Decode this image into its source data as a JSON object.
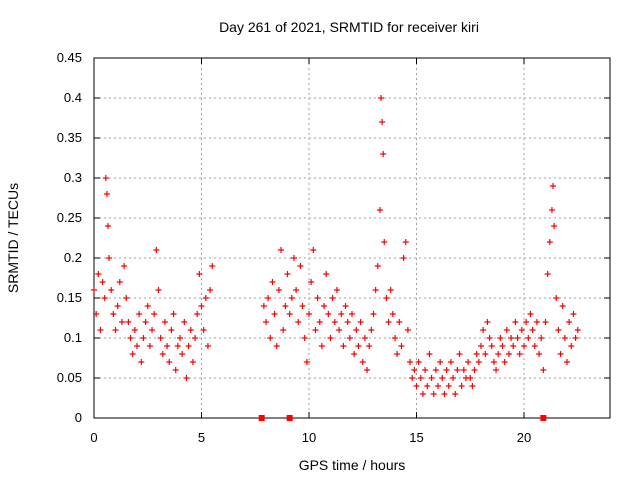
{
  "chart_data": {
    "type": "scatter",
    "title": "Day 261 of 2021, SRMTID for receiver kiri",
    "xlabel": "GPS time / hours",
    "ylabel": "SRMTID / TECUs",
    "xlim": [
      0,
      24
    ],
    "ylim": [
      0,
      0.45
    ],
    "xticks": [
      0,
      5,
      10,
      15,
      20
    ],
    "yticks": [
      0,
      0.05,
      0.1,
      0.15,
      0.2,
      0.25,
      0.3,
      0.35,
      0.4,
      0.45
    ],
    "xtick_labels": [
      "0",
      "5",
      "10",
      "15",
      "20"
    ],
    "ytick_labels": [
      "0",
      "0.05",
      "0.1",
      "0.15",
      "0.2",
      "0.25",
      "0.3",
      "0.35",
      "0.4",
      "0.45"
    ],
    "grid": true,
    "marker": "plus",
    "color": "#ff0000",
    "gap_marker_x": [
      7.8,
      9.1,
      20.9
    ],
    "series": [
      {
        "name": "SRMTID",
        "points": [
          [
            0.0,
            0.16
          ],
          [
            0.1,
            0.13
          ],
          [
            0.2,
            0.18
          ],
          [
            0.3,
            0.11
          ],
          [
            0.4,
            0.17
          ],
          [
            0.5,
            0.15
          ],
          [
            0.55,
            0.3
          ],
          [
            0.6,
            0.28
          ],
          [
            0.65,
            0.24
          ],
          [
            0.7,
            0.2
          ],
          [
            0.8,
            0.16
          ],
          [
            0.9,
            0.13
          ],
          [
            1.0,
            0.11
          ],
          [
            1.1,
            0.14
          ],
          [
            1.2,
            0.17
          ],
          [
            1.3,
            0.12
          ],
          [
            1.4,
            0.19
          ],
          [
            1.5,
            0.15
          ],
          [
            1.6,
            0.12
          ],
          [
            1.7,
            0.1
          ],
          [
            1.8,
            0.08
          ],
          [
            1.9,
            0.11
          ],
          [
            2.0,
            0.09
          ],
          [
            2.1,
            0.13
          ],
          [
            2.2,
            0.07
          ],
          [
            2.3,
            0.1
          ],
          [
            2.4,
            0.12
          ],
          [
            2.5,
            0.14
          ],
          [
            2.6,
            0.09
          ],
          [
            2.7,
            0.11
          ],
          [
            2.8,
            0.13
          ],
          [
            2.9,
            0.21
          ],
          [
            3.0,
            0.16
          ],
          [
            3.1,
            0.1
          ],
          [
            3.2,
            0.08
          ],
          [
            3.3,
            0.12
          ],
          [
            3.4,
            0.09
          ],
          [
            3.5,
            0.07
          ],
          [
            3.6,
            0.11
          ],
          [
            3.7,
            0.13
          ],
          [
            3.8,
            0.06
          ],
          [
            3.9,
            0.09
          ],
          [
            4.0,
            0.1
          ],
          [
            4.1,
            0.08
          ],
          [
            4.2,
            0.12
          ],
          [
            4.3,
            0.05
          ],
          [
            4.4,
            0.09
          ],
          [
            4.5,
            0.11
          ],
          [
            4.6,
            0.07
          ],
          [
            4.7,
            0.1
          ],
          [
            4.8,
            0.13
          ],
          [
            4.9,
            0.18
          ],
          [
            5.0,
            0.14
          ],
          [
            5.1,
            0.11
          ],
          [
            5.2,
            0.15
          ],
          [
            5.3,
            0.09
          ],
          [
            5.4,
            0.16
          ],
          [
            5.5,
            0.19
          ],
          [
            7.9,
            0.14
          ],
          [
            8.0,
            0.12
          ],
          [
            8.1,
            0.15
          ],
          [
            8.2,
            0.1
          ],
          [
            8.3,
            0.17
          ],
          [
            8.4,
            0.13
          ],
          [
            8.5,
            0.09
          ],
          [
            8.6,
            0.16
          ],
          [
            8.7,
            0.21
          ],
          [
            8.8,
            0.11
          ],
          [
            8.9,
            0.14
          ],
          [
            9.0,
            0.18
          ],
          [
            9.1,
            0.13
          ],
          [
            9.2,
            0.15
          ],
          [
            9.3,
            0.2
          ],
          [
            9.4,
            0.16
          ],
          [
            9.5,
            0.12
          ],
          [
            9.6,
            0.19
          ],
          [
            9.7,
            0.14
          ],
          [
            9.8,
            0.1
          ],
          [
            9.9,
            0.07
          ],
          [
            10.0,
            0.13
          ],
          [
            10.1,
            0.17
          ],
          [
            10.2,
            0.21
          ],
          [
            10.3,
            0.11
          ],
          [
            10.4,
            0.15
          ],
          [
            10.5,
            0.12
          ],
          [
            10.6,
            0.09
          ],
          [
            10.7,
            0.14
          ],
          [
            10.8,
            0.18
          ],
          [
            10.9,
            0.13
          ],
          [
            11.0,
            0.1
          ],
          [
            11.1,
            0.15
          ],
          [
            11.2,
            0.12
          ],
          [
            11.3,
            0.16
          ],
          [
            11.4,
            0.11
          ],
          [
            11.5,
            0.13
          ],
          [
            11.6,
            0.09
          ],
          [
            11.7,
            0.14
          ],
          [
            11.8,
            0.12
          ],
          [
            11.9,
            0.1
          ],
          [
            12.0,
            0.13
          ],
          [
            12.1,
            0.08
          ],
          [
            12.2,
            0.11
          ],
          [
            12.3,
            0.09
          ],
          [
            12.4,
            0.12
          ],
          [
            12.5,
            0.07
          ],
          [
            12.6,
            0.1
          ],
          [
            12.7,
            0.06
          ],
          [
            12.8,
            0.09
          ],
          [
            12.9,
            0.11
          ],
          [
            13.0,
            0.13
          ],
          [
            13.1,
            0.16
          ],
          [
            13.2,
            0.19
          ],
          [
            13.3,
            0.26
          ],
          [
            13.35,
            0.4
          ],
          [
            13.4,
            0.37
          ],
          [
            13.45,
            0.33
          ],
          [
            13.5,
            0.22
          ],
          [
            13.6,
            0.15
          ],
          [
            13.7,
            0.12
          ],
          [
            13.8,
            0.16
          ],
          [
            13.9,
            0.13
          ],
          [
            14.0,
            0.1
          ],
          [
            14.1,
            0.08
          ],
          [
            14.2,
            0.12
          ],
          [
            14.3,
            0.09
          ],
          [
            14.4,
            0.2
          ],
          [
            14.5,
            0.22
          ],
          [
            14.6,
            0.11
          ],
          [
            14.7,
            0.07
          ],
          [
            14.8,
            0.05
          ],
          [
            14.9,
            0.06
          ],
          [
            15.0,
            0.04
          ],
          [
            15.1,
            0.07
          ],
          [
            15.2,
            0.05
          ],
          [
            15.3,
            0.03
          ],
          [
            15.4,
            0.06
          ],
          [
            15.5,
            0.04
          ],
          [
            15.6,
            0.08
          ],
          [
            15.7,
            0.05
          ],
          [
            15.8,
            0.03
          ],
          [
            15.9,
            0.06
          ],
          [
            16.0,
            0.04
          ],
          [
            16.1,
            0.07
          ],
          [
            16.2,
            0.05
          ],
          [
            16.3,
            0.03
          ],
          [
            16.4,
            0.06
          ],
          [
            16.5,
            0.04
          ],
          [
            16.6,
            0.07
          ],
          [
            16.7,
            0.05
          ],
          [
            16.8,
            0.03
          ],
          [
            16.9,
            0.06
          ],
          [
            17.0,
            0.08
          ],
          [
            17.1,
            0.04
          ],
          [
            17.2,
            0.06
          ],
          [
            17.3,
            0.05
          ],
          [
            17.4,
            0.07
          ],
          [
            17.5,
            0.05
          ],
          [
            17.6,
            0.04
          ],
          [
            17.7,
            0.06
          ],
          [
            17.8,
            0.08
          ],
          [
            17.9,
            0.07
          ],
          [
            18.0,
            0.09
          ],
          [
            18.1,
            0.11
          ],
          [
            18.2,
            0.08
          ],
          [
            18.3,
            0.12
          ],
          [
            18.4,
            0.1
          ],
          [
            18.5,
            0.09
          ],
          [
            18.6,
            0.07
          ],
          [
            18.7,
            0.06
          ],
          [
            18.8,
            0.08
          ],
          [
            18.9,
            0.1
          ],
          [
            19.0,
            0.09
          ],
          [
            19.1,
            0.07
          ],
          [
            19.2,
            0.11
          ],
          [
            19.3,
            0.08
          ],
          [
            19.4,
            0.1
          ],
          [
            19.5,
            0.09
          ],
          [
            19.6,
            0.12
          ],
          [
            19.7,
            0.1
          ],
          [
            19.8,
            0.08
          ],
          [
            19.9,
            0.11
          ],
          [
            20.0,
            0.09
          ],
          [
            20.1,
            0.12
          ],
          [
            20.2,
            0.1
          ],
          [
            20.3,
            0.13
          ],
          [
            20.4,
            0.11
          ],
          [
            20.5,
            0.09
          ],
          [
            20.6,
            0.12
          ],
          [
            20.7,
            0.08
          ],
          [
            20.8,
            0.1
          ],
          [
            20.9,
            0.06
          ],
          [
            21.0,
            0.12
          ],
          [
            21.1,
            0.18
          ],
          [
            21.2,
            0.22
          ],
          [
            21.3,
            0.26
          ],
          [
            21.35,
            0.29
          ],
          [
            21.4,
            0.24
          ],
          [
            21.5,
            0.15
          ],
          [
            21.6,
            0.11
          ],
          [
            21.7,
            0.08
          ],
          [
            21.8,
            0.14
          ],
          [
            21.9,
            0.1
          ],
          [
            22.0,
            0.07
          ],
          [
            22.1,
            0.12
          ],
          [
            22.2,
            0.09
          ],
          [
            22.3,
            0.13
          ],
          [
            22.4,
            0.1
          ],
          [
            22.5,
            0.11
          ]
        ]
      }
    ]
  }
}
